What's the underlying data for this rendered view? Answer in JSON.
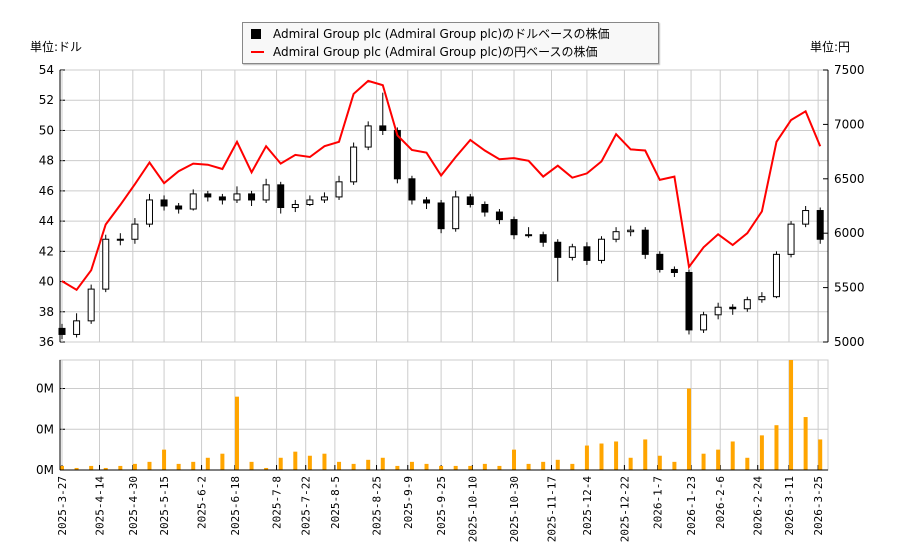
{
  "legend": {
    "usd_label": "Admiral Group plc (Admiral Group plc)のドルベースの株価",
    "jpy_label": "Admiral Group plc (Admiral Group plc)の円ベースの株価"
  },
  "units": {
    "left": "単位:ドル",
    "right": "単位:円"
  },
  "chart_data": [
    {
      "type": "candlestick+line",
      "x_ticks": [
        "2025-3-27",
        "2025-4-14",
        "2025-4-30",
        "2025-5-15",
        "2025-6-2",
        "2025-6-18",
        "2025-7-8",
        "2025-7-22",
        "2025-8-5",
        "2025-8-25",
        "2025-9-9",
        "2025-9-25",
        "2025-10-10",
        "2025-10-30",
        "2025-11-17",
        "2025-12-4",
        "2025-12-22",
        "2026-1-7",
        "2026-1-23",
        "2026-2-6",
        "2026-2-24",
        "2026-3-11",
        "2026-3-25"
      ],
      "y_left": {
        "range": [
          36,
          54
        ],
        "ticks": [
          36,
          38,
          40,
          42,
          44,
          46,
          48,
          50,
          52,
          54
        ]
      },
      "y_right": {
        "range": [
          5000,
          7500
        ],
        "ticks": [
          5000,
          5500,
          6000,
          6500,
          7000,
          7500
        ]
      },
      "grid": true,
      "legend_position": "top-center",
      "colors": {
        "jpy_line": "#ff0000",
        "candle_down": "#000000",
        "candle_up": "#ffffff"
      },
      "dates": [
        "2025-03-27",
        "2025-04-03",
        "2025-04-10",
        "2025-04-17",
        "2025-04-24",
        "2025-05-01",
        "2025-05-08",
        "2025-05-15",
        "2025-05-22",
        "2025-05-29",
        "2025-06-05",
        "2025-06-12",
        "2025-06-19",
        "2025-06-26",
        "2025-07-03",
        "2025-07-10",
        "2025-07-17",
        "2025-07-24",
        "2025-07-31",
        "2025-08-07",
        "2025-08-14",
        "2025-08-21",
        "2025-08-28",
        "2025-09-04",
        "2025-09-11",
        "2025-09-18",
        "2025-09-25",
        "2025-10-02",
        "2025-10-09",
        "2025-10-16",
        "2025-10-23",
        "2025-10-30",
        "2025-11-06",
        "2025-11-13",
        "2025-11-20",
        "2025-11-27",
        "2025-12-04",
        "2025-12-11",
        "2025-12-18",
        "2025-12-25",
        "2026-01-01",
        "2026-01-08",
        "2026-01-15",
        "2026-01-22",
        "2026-01-29",
        "2026-02-05",
        "2026-02-12",
        "2026-02-19",
        "2026-02-26",
        "2026-03-05",
        "2026-03-12",
        "2026-03-19",
        "2026-03-26"
      ],
      "usd_ohlc": [
        [
          36.9,
          37.2,
          36.2,
          36.5
        ],
        [
          36.5,
          37.9,
          36.3,
          37.4
        ],
        [
          37.4,
          39.8,
          37.2,
          39.5
        ],
        [
          39.5,
          43.1,
          39.3,
          42.8
        ],
        [
          42.8,
          43.2,
          42.4,
          42.8
        ],
        [
          42.8,
          44.2,
          42.5,
          43.8
        ],
        [
          43.8,
          45.8,
          43.6,
          45.4
        ],
        [
          45.4,
          45.7,
          44.7,
          45.0
        ],
        [
          45.0,
          45.2,
          44.5,
          44.8
        ],
        [
          44.8,
          46.1,
          44.7,
          45.8
        ],
        [
          45.8,
          46.0,
          45.3,
          45.6
        ],
        [
          45.6,
          45.8,
          45.1,
          45.4
        ],
        [
          45.4,
          46.3,
          45.2,
          45.8
        ],
        [
          45.8,
          46.0,
          45.0,
          45.4
        ],
        [
          45.4,
          46.8,
          45.2,
          46.4
        ],
        [
          46.4,
          46.6,
          44.5,
          44.9
        ],
        [
          44.9,
          45.4,
          44.6,
          45.1
        ],
        [
          45.1,
          45.7,
          45.0,
          45.4
        ],
        [
          45.4,
          45.9,
          45.2,
          45.6
        ],
        [
          45.6,
          47.0,
          45.4,
          46.6
        ],
        [
          46.6,
          49.2,
          46.4,
          48.9
        ],
        [
          48.9,
          50.6,
          48.7,
          50.3
        ],
        [
          50.3,
          52.5,
          49.7,
          50.0
        ],
        [
          50.0,
          50.2,
          46.5,
          46.8
        ],
        [
          46.8,
          47.0,
          45.1,
          45.4
        ],
        [
          45.4,
          45.6,
          44.8,
          45.2
        ],
        [
          45.2,
          45.4,
          43.2,
          43.5
        ],
        [
          43.5,
          46.0,
          43.3,
          45.6
        ],
        [
          45.6,
          45.8,
          44.9,
          45.1
        ],
        [
          45.1,
          45.3,
          44.3,
          44.6
        ],
        [
          44.6,
          44.8,
          43.8,
          44.1
        ],
        [
          44.1,
          44.3,
          42.8,
          43.1
        ],
        [
          43.1,
          43.6,
          42.9,
          43.1
        ],
        [
          43.1,
          43.3,
          42.3,
          42.6
        ],
        [
          42.6,
          42.8,
          40.0,
          41.6
        ],
        [
          41.6,
          42.5,
          41.4,
          42.3
        ],
        [
          42.3,
          42.6,
          41.1,
          41.4
        ],
        [
          41.4,
          43.0,
          41.2,
          42.8
        ],
        [
          42.8,
          43.6,
          42.6,
          43.3
        ],
        [
          43.3,
          43.7,
          43.0,
          43.4
        ],
        [
          43.4,
          43.6,
          41.5,
          41.8
        ],
        [
          41.8,
          42.0,
          40.6,
          40.8
        ],
        [
          40.8,
          41.0,
          40.3,
          40.6
        ],
        [
          40.6,
          40.8,
          36.5,
          36.8
        ],
        [
          36.8,
          38.0,
          36.6,
          37.8
        ],
        [
          37.8,
          38.6,
          37.5,
          38.3
        ],
        [
          38.3,
          38.5,
          37.8,
          38.2
        ],
        [
          38.2,
          39.0,
          38.0,
          38.8
        ],
        [
          38.8,
          39.3,
          38.6,
          39.0
        ],
        [
          39.0,
          42.0,
          38.9,
          41.8
        ],
        [
          41.8,
          44.0,
          41.6,
          43.8
        ],
        [
          43.8,
          45.0,
          43.6,
          44.7
        ],
        [
          44.7,
          44.9,
          42.5,
          42.8
        ]
      ],
      "jpy_close": [
        5560,
        5480,
        5660,
        6080,
        6260,
        6450,
        6650,
        6460,
        6570,
        6640,
        6630,
        6590,
        6840,
        6560,
        6800,
        6640,
        6720,
        6700,
        6800,
        6840,
        7280,
        7400,
        7360,
        6900,
        6765,
        6740,
        6530,
        6700,
        6857,
        6760,
        6680,
        6690,
        6665,
        6520,
        6620,
        6510,
        6550,
        6660,
        6910,
        6770,
        6760,
        6490,
        6520,
        5690,
        5870,
        5990,
        5892,
        6000,
        6200,
        6840,
        7040,
        7120,
        6800
      ],
      "volume_axis": {
        "range": [
          0,
          0.27
        ],
        "ticks": [
          0,
          0.1,
          0.2
        ],
        "tick_labels": [
          "0M",
          "0M",
          "0M"
        ]
      },
      "volume_color": "#ffa500",
      "volume": [
        0.01,
        0.005,
        0.01,
        0.005,
        0.01,
        0.015,
        0.02,
        0.05,
        0.015,
        0.02,
        0.03,
        0.04,
        0.18,
        0.02,
        0.005,
        0.03,
        0.045,
        0.035,
        0.04,
        0.02,
        0.015,
        0.025,
        0.03,
        0.01,
        0.02,
        0.015,
        0.01,
        0.01,
        0.01,
        0.015,
        0.01,
        0.05,
        0.015,
        0.02,
        0.025,
        0.015,
        0.06,
        0.065,
        0.07,
        0.03,
        0.075,
        0.035,
        0.02,
        0.2,
        0.04,
        0.05,
        0.07,
        0.03,
        0.085,
        0.11,
        0.27,
        0.13,
        0.075
      ]
    }
  ]
}
